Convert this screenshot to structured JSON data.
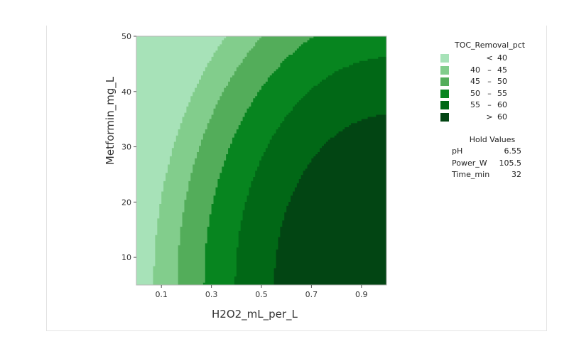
{
  "chart_data": {
    "type": "contour",
    "title": "",
    "xlabel": "H2O2_mL_per_L",
    "ylabel": "Metformin_mg_L",
    "xlim": [
      0,
      1.0
    ],
    "ylim": [
      5,
      50
    ],
    "x_ticks": [
      0.1,
      0.3,
      0.5,
      0.7,
      0.9
    ],
    "y_ticks": [
      10,
      20,
      30,
      40,
      50
    ],
    "levels": [
      40,
      45,
      50,
      55,
      60
    ],
    "legend": {
      "title": "TOC_Removal_pct",
      "placement": "right",
      "entries": [
        {
          "lo": "",
          "op": "<",
          "hi": "40",
          "color": "#a7e2b8"
        },
        {
          "lo": "40",
          "op": "–",
          "hi": "45",
          "color": "#82cd8c"
        },
        {
          "lo": "45",
          "op": "–",
          "hi": "50",
          "color": "#53ad5a"
        },
        {
          "lo": "50",
          "op": "–",
          "hi": "55",
          "color": "#07851f"
        },
        {
          "lo": "55",
          "op": "–",
          "hi": "60",
          "color": "#016816"
        },
        {
          "lo": "",
          "op": ">",
          "hi": "60",
          "color": "#024513"
        }
      ]
    },
    "hold_values": {
      "title": "Hold Values",
      "items": [
        {
          "name": "pH",
          "value": "6.55"
        },
        {
          "name": "Power_W",
          "value": "105.5"
        },
        {
          "name": "Time_min",
          "value": "32"
        }
      ]
    }
  }
}
